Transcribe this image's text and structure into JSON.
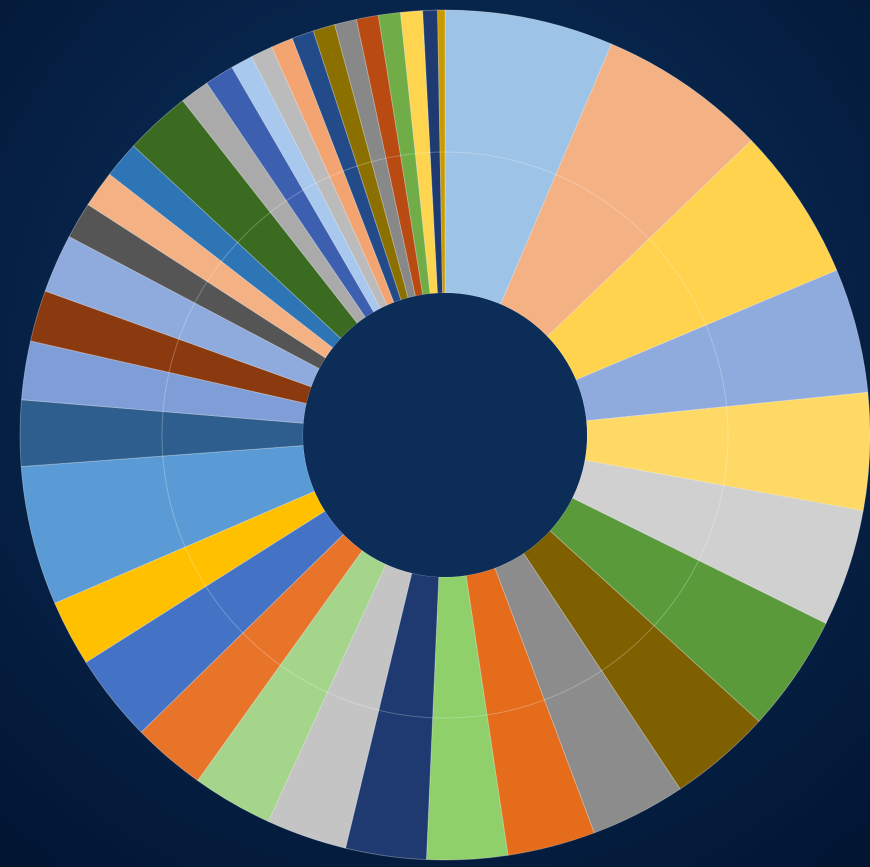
{
  "chart_data": {
    "type": "donut",
    "values": [
      23,
      23,
      21,
      17,
      16,
      16,
      16,
      14,
      13,
      12,
      11,
      11,
      11,
      11,
      10,
      12,
      9,
      19,
      9,
      8,
      7,
      8,
      5,
      5,
      5,
      9,
      4,
      4,
      3,
      3,
      3,
      3,
      3,
      3,
      3,
      3,
      3,
      2,
      1
    ],
    "colors": [
      "#9dc3e6",
      "#f4b183",
      "#ffd34d",
      "#8faadc",
      "#ffd966",
      "#d0d0d0",
      "#5a9a3a",
      "#7f6000",
      "#8c8c8c",
      "#e46c1a",
      "#8fd06a",
      "#1f3a70",
      "#c4c4c4",
      "#a4d58a",
      "#e8742a",
      "#4472c4",
      "#ffc000",
      "#5b9bd5",
      "#2e5e8e",
      "#7f9ed8",
      "#8b3a0f",
      "#8faadc",
      "#555555",
      "#f4b183",
      "#2e75b6",
      "#3a6b20",
      "#aaaaaa",
      "#3d5fb0",
      "#a9c8ee",
      "#bbbbbb",
      "#f4a470",
      "#234b8a",
      "#8b7000",
      "#888888",
      "#b84a12",
      "#70ad47",
      "#ffd54f",
      "#1f3a70",
      "#c89b00"
    ]
  }
}
